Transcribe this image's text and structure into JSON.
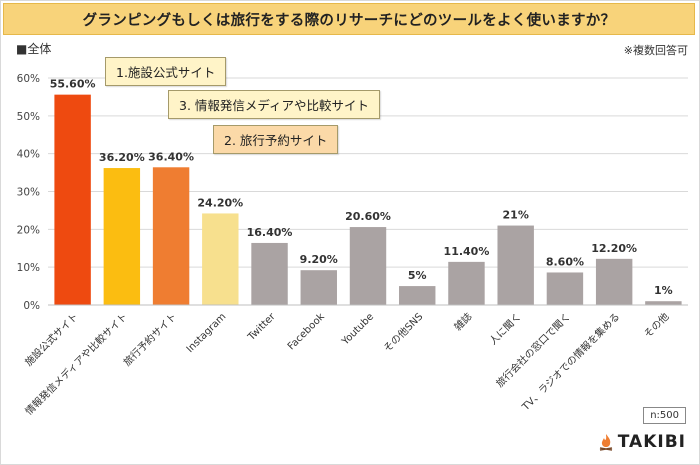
{
  "title": "グランピングもしくは旅行をする際のリサーチにどのツールをよく使いますか？",
  "legend_label": "■全体",
  "note": "※複数回答可",
  "sample_size": "n:500",
  "brand": "TAKIBI",
  "callouts": [
    {
      "label": "1.施設公式サイト"
    },
    {
      "label": "3. 情報発信メディアや比較サイト"
    },
    {
      "label": "2. 旅行予約サイト"
    }
  ],
  "chart_data": {
    "type": "bar",
    "title": "グランピングもしくは旅行をする際のリサーチにどのツールをよく使いますか？",
    "xlabel": "",
    "ylabel": "",
    "ylim": [
      0,
      60
    ],
    "yticks": [
      0,
      10,
      20,
      30,
      40,
      50,
      60
    ],
    "ytick_labels": [
      "0%",
      "10%",
      "20%",
      "30%",
      "40%",
      "50%",
      "60%"
    ],
    "categories": [
      "施設公式サイト",
      "情報発信メディアや比較サイト",
      "旅行予約サイト",
      "Instagram",
      "Twitter",
      "Facebook",
      "Youtube",
      "その他SNS",
      "雑誌",
      "人に聞く",
      "旅行会社の窓口で聞く",
      "TV、ラジオでの情報を集める",
      "その他"
    ],
    "values": [
      55.6,
      36.2,
      36.4,
      24.2,
      16.4,
      9.2,
      20.6,
      5,
      11.4,
      21,
      8.6,
      12.2,
      1
    ],
    "value_labels": [
      "55.60%",
      "36.20%",
      "36.40%",
      "24.20%",
      "16.40%",
      "9.20%",
      "20.60%",
      "5%",
      "11.40%",
      "21%",
      "8.60%",
      "12.20%",
      "1%"
    ],
    "colors": [
      "#ee4a10",
      "#fbbd11",
      "#ef7d31",
      "#f7e08e",
      "#aaa3a3",
      "#aaa3a3",
      "#aaa3a3",
      "#aaa3a3",
      "#aaa3a3",
      "#aaa3a3",
      "#aaa3a3",
      "#aaa3a3",
      "#aaa3a3"
    ],
    "grid": true,
    "legend": "top-left"
  }
}
